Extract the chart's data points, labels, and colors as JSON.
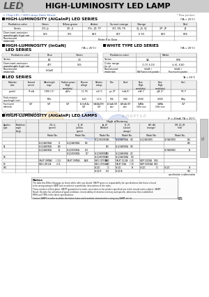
{
  "title": "HIGH-LUMINOSITY LED LAMP",
  "led_text": "LED",
  "subtitle": "> Chip LEC / LED Lamp Data Sheet",
  "new_product": "* New product",
  "bg_color": "#ffffff",
  "header_bg": "#cccccc",
  "blue_text_color": "#4466bb",
  "watermark_color": "#e8a020",
  "page_num": "95",
  "right_tab_text": "EL"
}
